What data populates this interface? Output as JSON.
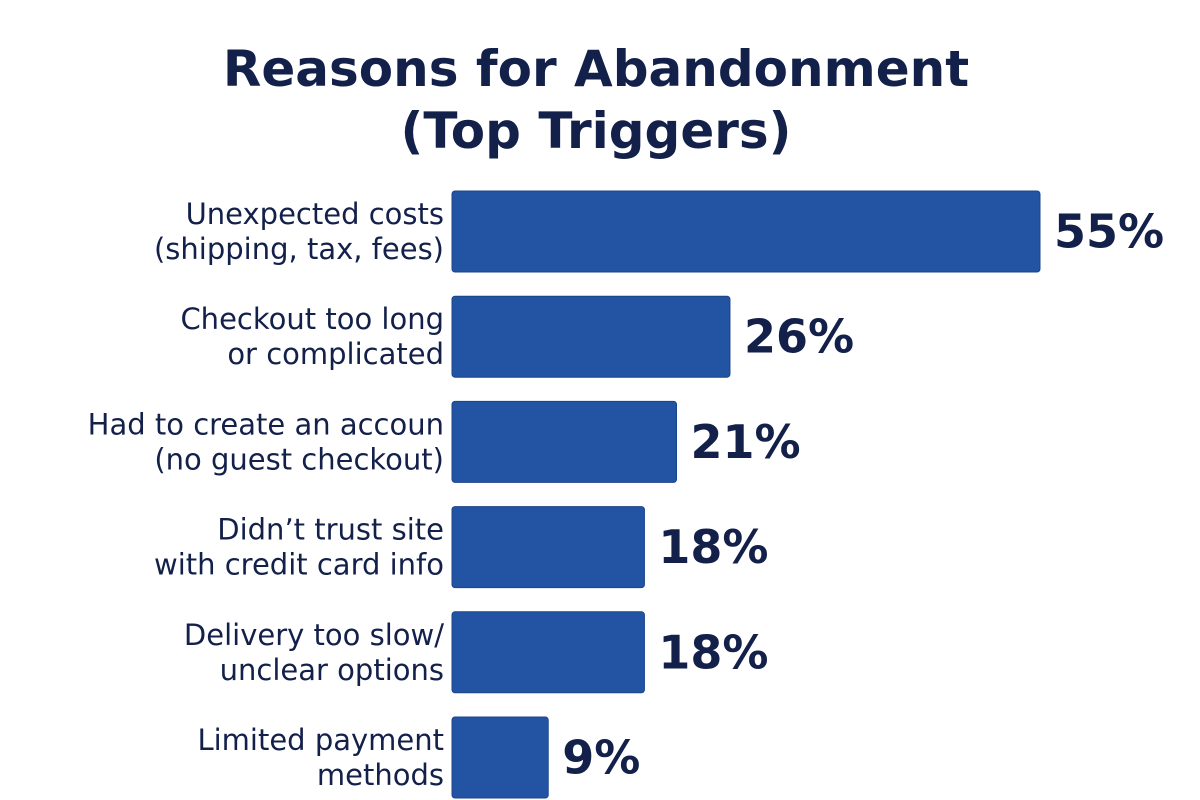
{
  "colors": {
    "bar": "#2254a3",
    "bar_stroke": "#1b4489",
    "title": "#13204a",
    "label": "#13204a",
    "value": "#13204a"
  },
  "chart_data": {
    "type": "bar",
    "orientation": "horizontal",
    "title": [
      "Reasons for Abandonment",
      "(Top Triggers)"
    ],
    "categories": [
      [
        "Unexpected costs",
        "(shipping, tax, fees)"
      ],
      [
        "Checkout too long",
        "or complicated"
      ],
      [
        "Had to create an accoun",
        "(no guest checkout)"
      ],
      [
        "Didn’t trust site",
        "with credit card info"
      ],
      [
        "Delivery too slow/",
        "unclear options"
      ],
      [
        "Limited payment",
        "methods"
      ]
    ],
    "values": [
      55,
      26,
      21,
      18,
      18,
      9
    ],
    "value_labels": [
      "55%",
      "26%",
      "21%",
      "18%",
      "18%",
      "9%"
    ],
    "xlabel": "",
    "ylabel": "",
    "unit": "%",
    "grid": false,
    "legend": "none"
  }
}
